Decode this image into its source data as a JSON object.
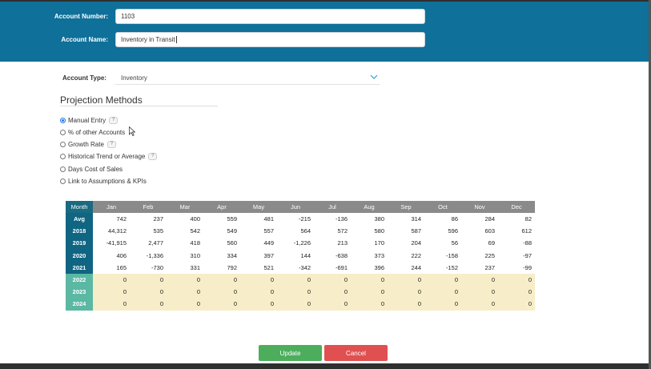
{
  "header": {
    "account_number_label": "Account Number:",
    "account_number_value": "1103",
    "account_name_label": "Account Name:",
    "account_name_value": "Inventory in Transit"
  },
  "account_type": {
    "label": "Account Type:",
    "value": "Inventory"
  },
  "projection": {
    "title": "Projection Methods",
    "methods": [
      {
        "label": "Manual Entry",
        "checked": true,
        "help": "?"
      },
      {
        "label": "% of other Accounts",
        "checked": false,
        "help": ""
      },
      {
        "label": "Growth Rate",
        "checked": false,
        "help": "?"
      },
      {
        "label": "Historical Trend or Average",
        "checked": false,
        "help": "?"
      },
      {
        "label": "Days Cost of Sales",
        "checked": false,
        "help": ""
      },
      {
        "label": "Link to Assumptions & KPIs",
        "checked": false,
        "help": ""
      }
    ]
  },
  "table": {
    "corner": "Month",
    "months": [
      "Jan",
      "Feb",
      "Mar",
      "Apr",
      "May",
      "Jun",
      "Jul",
      "Aug",
      "Sep",
      "Oct",
      "Nov",
      "Dec"
    ],
    "rows": [
      {
        "label": "Avg",
        "future": false,
        "values": [
          "742",
          "237",
          "400",
          "559",
          "481",
          "-215",
          "-136",
          "380",
          "314",
          "86",
          "284",
          "82"
        ]
      },
      {
        "label": "2018",
        "future": false,
        "values": [
          "44,312",
          "535",
          "542",
          "549",
          "557",
          "564",
          "572",
          "580",
          "587",
          "596",
          "603",
          "612"
        ]
      },
      {
        "label": "2019",
        "future": false,
        "values": [
          "-41,915",
          "2,477",
          "418",
          "560",
          "449",
          "-1,226",
          "213",
          "170",
          "204",
          "56",
          "69",
          "-88"
        ]
      },
      {
        "label": "2020",
        "future": false,
        "values": [
          "406",
          "-1,336",
          "310",
          "334",
          "397",
          "144",
          "-638",
          "373",
          "222",
          "-158",
          "225",
          "-97"
        ]
      },
      {
        "label": "2021",
        "future": false,
        "values": [
          "165",
          "-730",
          "331",
          "792",
          "521",
          "-342",
          "-691",
          "396",
          "244",
          "-152",
          "237",
          "-99"
        ]
      },
      {
        "label": "2022",
        "future": true,
        "values": [
          "0",
          "0",
          "0",
          "0",
          "0",
          "0",
          "0",
          "0",
          "0",
          "0",
          "0",
          "0"
        ]
      },
      {
        "label": "2023",
        "future": true,
        "values": [
          "0",
          "0",
          "0",
          "0",
          "0",
          "0",
          "0",
          "0",
          "0",
          "0",
          "0",
          "0"
        ]
      },
      {
        "label": "2024",
        "future": true,
        "values": [
          "0",
          "0",
          "0",
          "0",
          "0",
          "0",
          "0",
          "0",
          "0",
          "0",
          "0",
          "0"
        ]
      }
    ]
  },
  "buttons": {
    "update": "Update",
    "cancel": "Cancel"
  },
  "colors": {
    "header": "#0f7099",
    "update": "#4cae5c",
    "cancel": "#e05050",
    "future_row": "#f7edc8"
  }
}
